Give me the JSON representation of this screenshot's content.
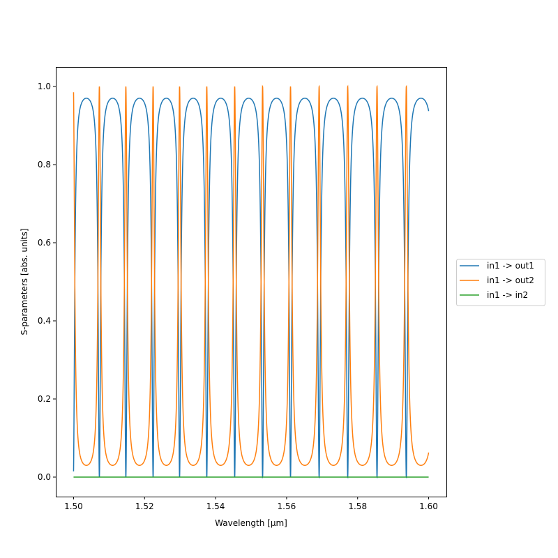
{
  "chart_data": {
    "type": "line",
    "xlabel": "Wavelength [μm]",
    "ylabel": "S-parameters [abs. units]",
    "xlim": [
      1.495,
      1.605
    ],
    "ylim": [
      -0.05,
      1.05
    ],
    "xticks": [
      1.5,
      1.52,
      1.54,
      1.56,
      1.58,
      1.6
    ],
    "xtick_labels": [
      "1.50",
      "1.52",
      "1.54",
      "1.56",
      "1.58",
      "1.60"
    ],
    "yticks": [
      0.0,
      0.2,
      0.4,
      0.6,
      0.8,
      1.0
    ],
    "ytick_labels": [
      "0.0",
      "0.2",
      "0.4",
      "0.6",
      "0.8",
      "1.0"
    ],
    "grid": false,
    "legend_position": "right-outside",
    "x_range": [
      1.5,
      1.6
    ],
    "resonance_wavelengths": [
      1.49995,
      1.50727,
      1.51473,
      1.5224,
      1.52986,
      1.53752,
      1.54538,
      1.55324,
      1.5611,
      1.56916,
      1.57721,
      1.58546,
      1.59371
    ],
    "series": [
      {
        "name": "in1 -> out1",
        "color": "#1f77b4",
        "shape": "through",
        "max": 0.97,
        "min": 0.0,
        "end_value": 0.945
      },
      {
        "name": "in1 -> out2",
        "color": "#ff7f0e",
        "shape": "drop",
        "max": 1.0,
        "min": 0.03,
        "end_value": 0.055
      },
      {
        "name": "in1 -> in2",
        "color": "#2ca02c",
        "shape": "constant",
        "value": 0.0
      }
    ]
  }
}
